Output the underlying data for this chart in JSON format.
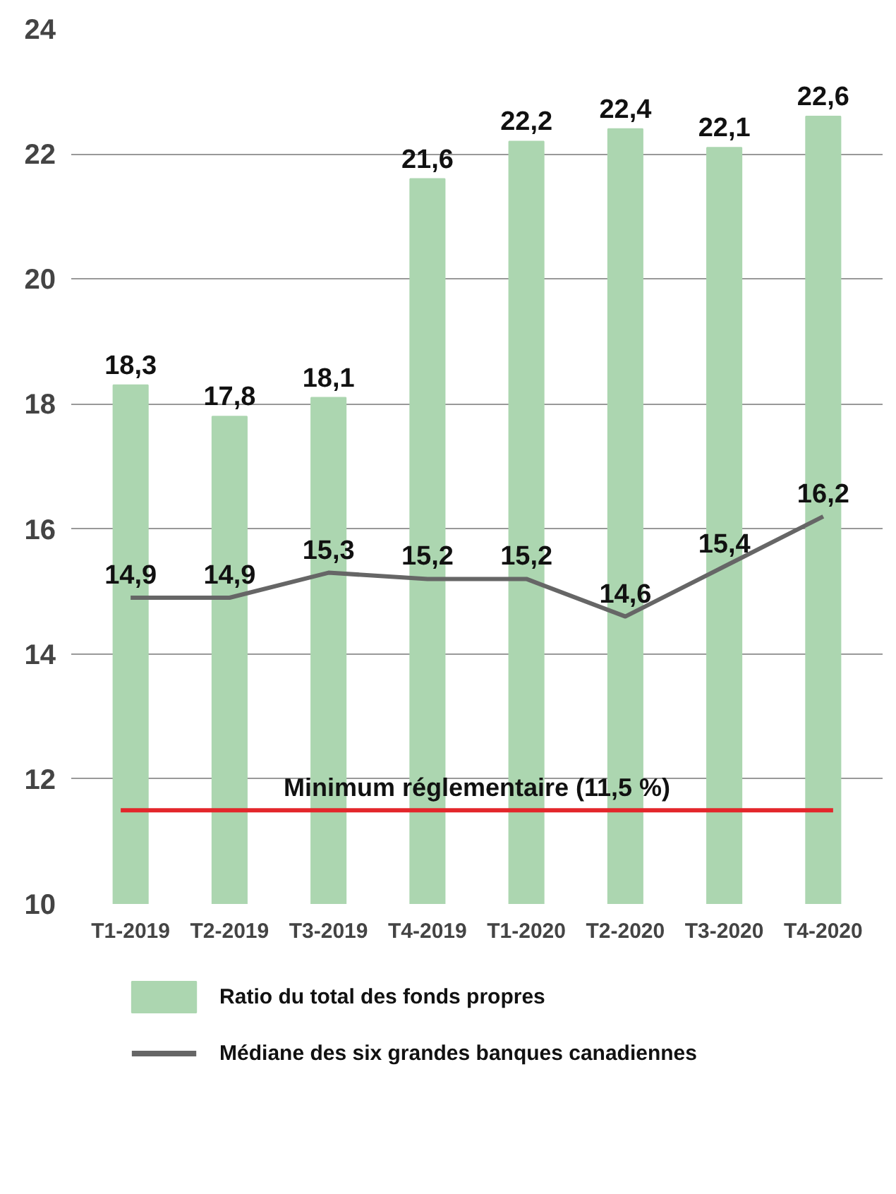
{
  "chart_data": {
    "type": "bar",
    "categories": [
      "T1-2019",
      "T2-2019",
      "T3-2019",
      "T4-2019",
      "T1-2020",
      "T2-2020",
      "T3-2020",
      "T4-2020"
    ],
    "series": [
      {
        "name": "Ratio du total des fonds propres",
        "color": "#acd6b0",
        "values": [
          18.3,
          17.8,
          18.1,
          21.6,
          22.2,
          22.4,
          22.1,
          22.6
        ],
        "value_labels": [
          "18,3",
          "17,8",
          "18,1",
          "21,6",
          "22,2",
          "22,4",
          "22,1",
          "22,6"
        ]
      },
      {
        "name": "Médiane des six grandes banques canadiennes",
        "type": "line",
        "color": "#666666",
        "values": [
          14.9,
          14.9,
          15.3,
          15.2,
          15.2,
          14.6,
          15.4,
          16.2
        ],
        "value_labels": [
          "14,9",
          "14,9",
          "15,3",
          "15,2",
          "15,2",
          "14,6",
          "15,4",
          "16,2"
        ]
      }
    ],
    "ylim": [
      10,
      24
    ],
    "yticks": [
      10,
      12,
      14,
      16,
      18,
      20,
      22,
      24
    ],
    "grid": "y",
    "legend": "bottom",
    "line_style": "solid",
    "marker": "none",
    "ref_lines": [
      {
        "axis": "y",
        "value": 11.5,
        "label": "Minimum réglementaire (11,5 %)",
        "color": "#e3262b",
        "line_style": "solid"
      }
    ]
  }
}
